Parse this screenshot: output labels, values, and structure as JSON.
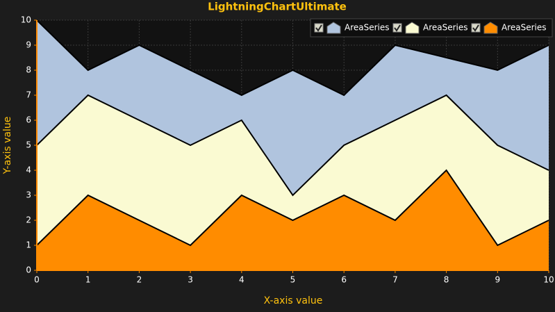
{
  "chart_data": {
    "type": "area",
    "title": "LightningChartUltimate",
    "x_label": "X-axis value",
    "y_label": "Y-axis value",
    "x": [
      0,
      1,
      2,
      3,
      4,
      5,
      6,
      7,
      8,
      9,
      10
    ],
    "series": [
      {
        "name": "AreaSeries",
        "color": "#b0c4de",
        "values": [
          10,
          8,
          9,
          8,
          7,
          8,
          7,
          9,
          8.5,
          8,
          9
        ]
      },
      {
        "name": "AreaSeries",
        "color": "#fafad2",
        "values": [
          5,
          7,
          6,
          5,
          6,
          3,
          5,
          6,
          7,
          5,
          4
        ]
      },
      {
        "name": "AreaSeries",
        "color": "#ff8c00",
        "values": [
          1,
          3,
          2,
          1,
          3,
          2,
          3,
          2,
          4,
          1,
          2
        ]
      }
    ],
    "xlim": [
      0,
      10
    ],
    "xticks": [
      0,
      1,
      2,
      3,
      4,
      5,
      6,
      7,
      8,
      9,
      10
    ],
    "ylim": [
      0,
      10
    ],
    "yticks": [
      0,
      1,
      2,
      3,
      4,
      5,
      6,
      7,
      8,
      9,
      10
    ],
    "grid": true,
    "legend": "top-right"
  }
}
